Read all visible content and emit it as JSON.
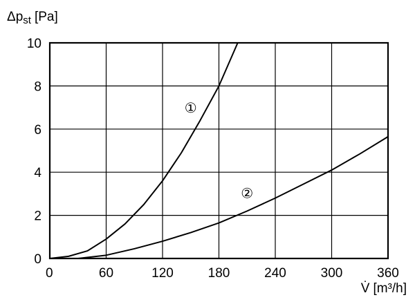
{
  "chart_data": {
    "type": "line",
    "ylabel_main": "Δp",
    "ylabel_sub": "st",
    "ylabel_unit": "[Pa]",
    "xlabel_main": "V̇",
    "xlabel_unit": "[m³/h]",
    "xlim": [
      0,
      360
    ],
    "ylim": [
      0,
      10
    ],
    "x_ticks": [
      "0",
      "60",
      "120",
      "180",
      "240",
      "300",
      "360"
    ],
    "y_ticks": [
      "0",
      "2",
      "4",
      "6",
      "8",
      "10"
    ],
    "grid": true,
    "series": [
      {
        "name": "①",
        "x": [
          0,
          20,
          40,
          60,
          80,
          100,
          120,
          140,
          160,
          180,
          200
        ],
        "y": [
          0,
          0.1,
          0.35,
          0.9,
          1.6,
          2.5,
          3.6,
          4.9,
          6.4,
          8.0,
          10.0
        ]
      },
      {
        "name": "②",
        "x": [
          30,
          60,
          90,
          120,
          150,
          180,
          210,
          240,
          270,
          300,
          330,
          360
        ],
        "y": [
          0,
          0.15,
          0.45,
          0.8,
          1.2,
          1.65,
          2.2,
          2.8,
          3.45,
          4.1,
          4.85,
          5.65
        ]
      }
    ],
    "series_label_positions": [
      {
        "x": 150,
        "y": 6.95
      },
      {
        "x": 210,
        "y": 3.0
      }
    ]
  }
}
